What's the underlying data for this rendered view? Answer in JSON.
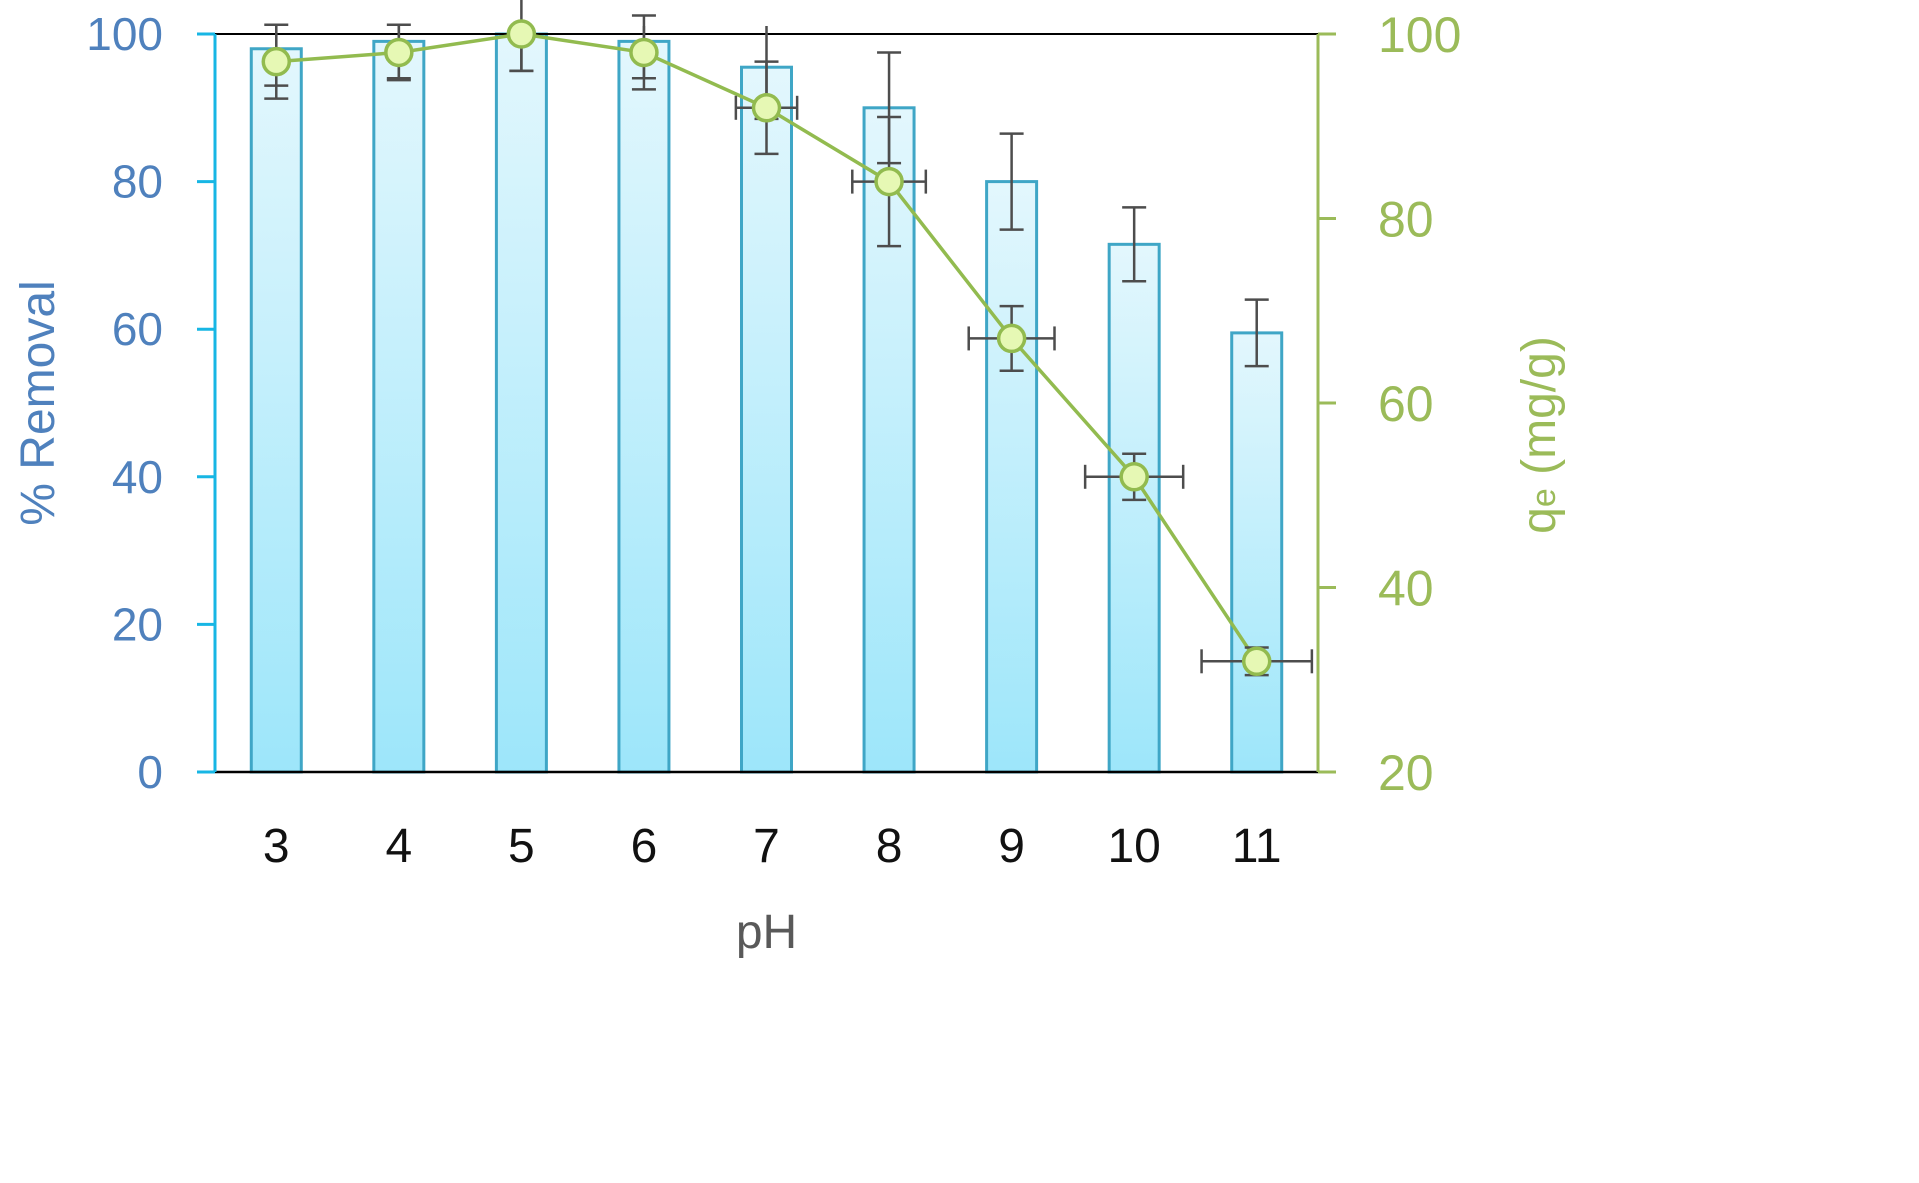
{
  "chart_data": {
    "type": "bar",
    "xlabel": "pH",
    "ylabel": "% Removal",
    "y2label": "qe (mg/g)",
    "y2label_parts": [
      "q",
      "e",
      " (mg/g)"
    ],
    "categories": [
      "3",
      "4",
      "5",
      "6",
      "7",
      "8",
      "9",
      "10",
      "11"
    ],
    "ylim": [
      0,
      100
    ],
    "y2lim": [
      20,
      100
    ],
    "yticks": [
      "0",
      "20",
      "40",
      "60",
      "80",
      "100"
    ],
    "y2ticks": [
      "20",
      "40",
      "60",
      "80",
      "100"
    ],
    "series": [
      {
        "kind": "bar",
        "axis": "left",
        "values": [
          98,
          99,
          100,
          99,
          95.5,
          90,
          80,
          71.5,
          59.5
        ],
        "error": [
          5,
          5,
          5,
          5,
          7,
          7.5,
          6.5,
          5,
          4.5
        ]
      },
      {
        "kind": "line",
        "axis": "right",
        "values": [
          97,
          98,
          100,
          98,
          92,
          84,
          67,
          52,
          32
        ],
        "yerror": [
          4,
          3,
          4,
          4,
          5,
          7,
          3.5,
          2.5,
          1.5
        ],
        "xerror": [
          0,
          0,
          0,
          0,
          0.25,
          0.3,
          0.35,
          0.4,
          0.45
        ]
      }
    ],
    "colors": {
      "bar_fill_top": "#e3f7fd",
      "bar_fill_bottom": "#9de6fa",
      "bar_stroke": "#3fa6c6",
      "left_axis": "#17b6e4",
      "left_label": "#4f81bd",
      "right_axis": "#9bbb59",
      "right_label": "#9bbb59",
      "line": "#92bb4f",
      "marker_fill": "#e6f8b4",
      "error_bar": "#4d4d4d",
      "x_tick": "#111111",
      "x_label": "#595959"
    },
    "grid": false,
    "legend": "none"
  }
}
